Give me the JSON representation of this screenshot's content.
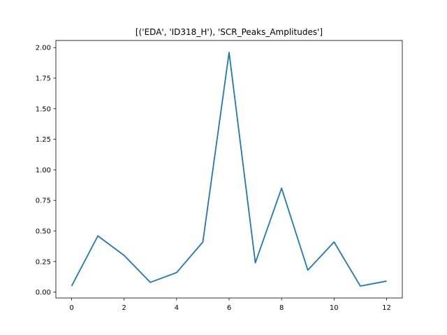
{
  "chart_data": {
    "type": "line",
    "title": "[('EDA', 'ID318_H'), 'SCR_Peaks_Amplitudes']",
    "xlabel": "",
    "ylabel": "",
    "x": [
      0,
      1,
      2,
      3,
      4,
      5,
      6,
      7,
      8,
      9,
      10,
      11,
      12
    ],
    "series": [
      {
        "values": [
          0.05,
          0.46,
          0.3,
          0.08,
          0.16,
          0.41,
          1.96,
          0.24,
          0.85,
          0.18,
          0.41,
          0.05,
          0.09
        ],
        "color": "#1f77b4"
      }
    ],
    "xlim": [
      -0.6,
      12.6
    ],
    "ylim": [
      -0.048,
      2.058
    ],
    "xticks": [
      0,
      2,
      4,
      6,
      8,
      10,
      12
    ],
    "xtick_labels": [
      "0",
      "2",
      "4",
      "6",
      "8",
      "10",
      "12"
    ],
    "yticks": [
      0.0,
      0.25,
      0.5,
      0.75,
      1.0,
      1.25,
      1.5,
      1.75,
      2.0
    ],
    "ytick_labels": [
      "0.00",
      "0.25",
      "0.50",
      "0.75",
      "1.00",
      "1.25",
      "1.50",
      "1.75",
      "2.00"
    ],
    "grid": false,
    "legend": "none"
  }
}
